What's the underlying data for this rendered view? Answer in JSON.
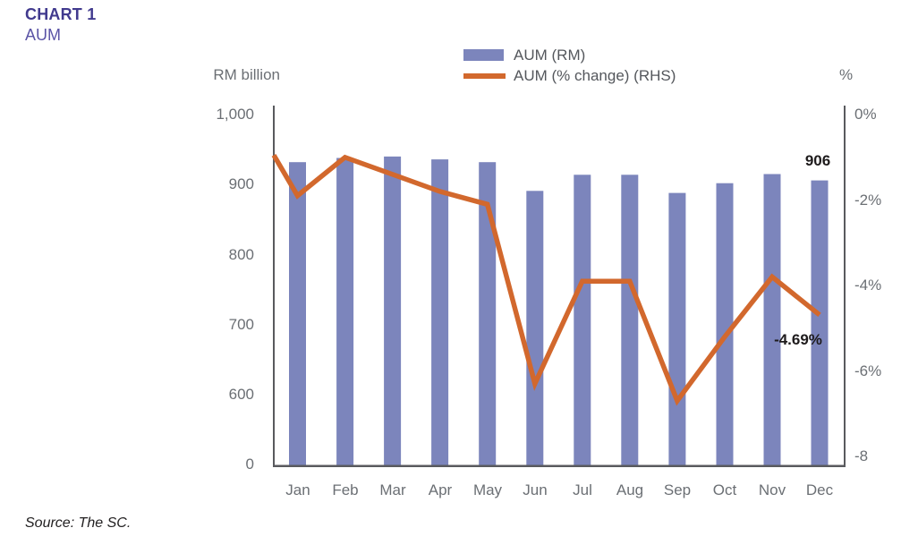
{
  "header": {
    "title": "CHART 1",
    "subtitle": "AUM"
  },
  "source_note": "Source: The SC.",
  "annotations": {
    "dec_bar_value": "906",
    "dec_line_value": "-4.69%"
  },
  "legend": {
    "items": [
      {
        "label": "AUM (RM)",
        "marker": "bar-swatch"
      },
      {
        "label": "AUM (% change) (RHS)",
        "marker": "line-swatch"
      }
    ]
  },
  "colors": {
    "bar": "#7c85bc",
    "line": "#d2682d",
    "title": "#413a8e",
    "subtitle": "#5b54a6",
    "axis_line": "#595a5e",
    "tick_text": "#6b6f74"
  },
  "chart_data": {
    "type": "bar",
    "subtype": "combo-bar-line-dual-axis",
    "title": "CHART 1 - AUM",
    "categories": [
      "Jan",
      "Feb",
      "Mar",
      "Apr",
      "May",
      "Jun",
      "Jul",
      "Aug",
      "Sep",
      "Oct",
      "Nov",
      "Dec"
    ],
    "series": [
      {
        "name": "AUM (RM)",
        "chart_type": "bar",
        "axis": "left",
        "values": [
          932,
          938,
          940,
          936,
          932,
          891,
          914,
          914,
          888,
          902,
          915,
          906
        ]
      },
      {
        "name": "AUM (% change) (RHS)",
        "chart_type": "line",
        "axis": "right",
        "values": [
          -1.9,
          -1.0,
          -1.4,
          -1.8,
          -2.1,
          -6.3,
          -3.9,
          -3.9,
          -6.7,
          -5.2,
          -3.8,
          -4.69
        ],
        "prev_december_value": 0
      }
    ],
    "left_axis": {
      "title": "RM billion",
      "tick_labels": [
        "0",
        "600",
        "700",
        "800",
        "900",
        "1,000"
      ],
      "tick_values": [
        0,
        600,
        700,
        800,
        900,
        1000
      ],
      "scale_break_between": [
        0,
        600
      ]
    },
    "right_axis": {
      "title": "%",
      "tick_labels": [
        "0%",
        "-2%",
        "-4%",
        "-6%",
        "-8"
      ],
      "tick_values": [
        0,
        -2,
        -4,
        -6,
        -8
      ]
    },
    "grid": false,
    "legend_position": "top-center",
    "point_labels": {
      "dec_bar": "906",
      "dec_line": "-4.69%"
    }
  }
}
